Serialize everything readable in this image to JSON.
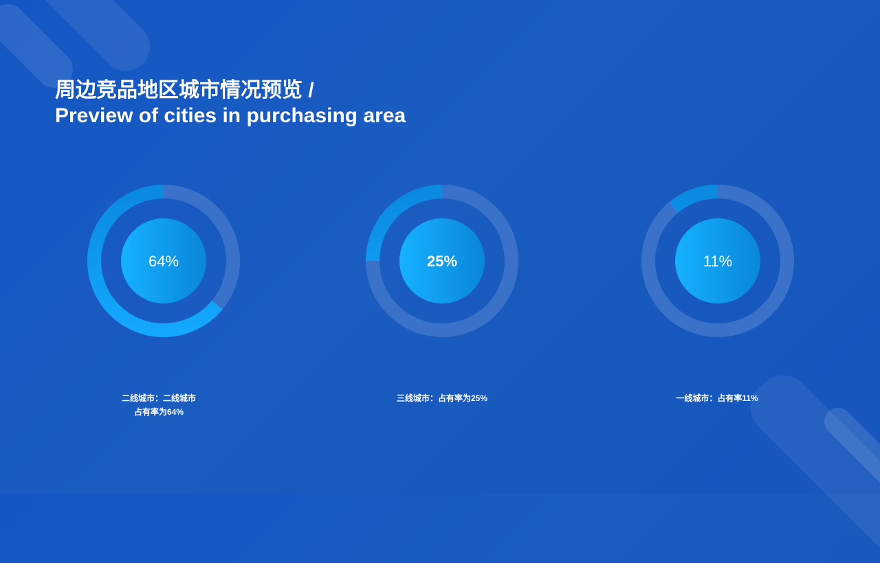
{
  "title": {
    "line1": "周边竞品地区城市情况预览 /",
    "line2": "Preview of cities in purchasing area"
  },
  "colors": {
    "background": "#1658c2",
    "track": "#3a71c9",
    "progress_start": "#14a8ff",
    "progress_end": "#0a8ae0",
    "inner_circle_start": "#16b2ff",
    "inner_circle_end": "#0a86d8"
  },
  "chart_data": {
    "type": "gauge",
    "items": [
      {
        "label": "64%",
        "value": 64,
        "caption_line1": "二线城市：二线城市",
        "caption_line2": "占有率为64%"
      },
      {
        "label": "25%",
        "value": 25,
        "caption_line1": "三线城市：占有率为25%",
        "caption_line2": ""
      },
      {
        "label": "11%",
        "value": 11,
        "caption_line1": "一线城市：占有率11%",
        "caption_line2": ""
      }
    ]
  }
}
